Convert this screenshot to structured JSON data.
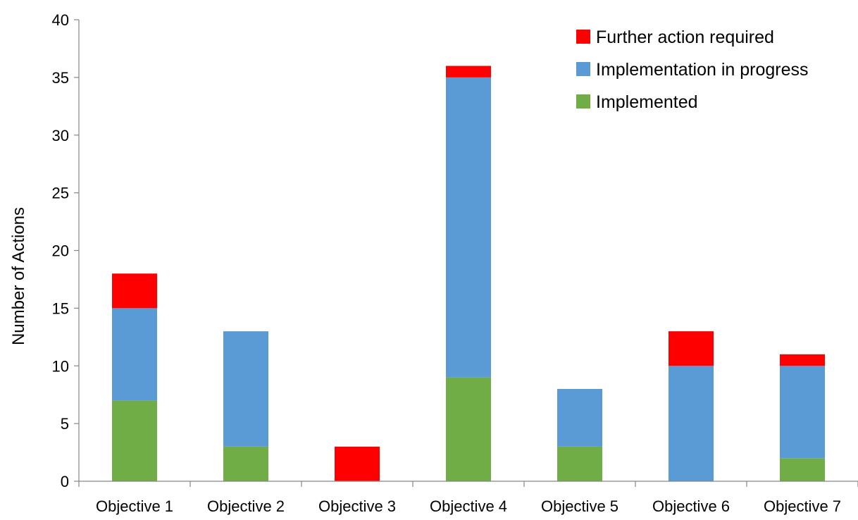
{
  "chart_data": {
    "type": "bar",
    "stacked": true,
    "title": "",
    "xlabel": "",
    "ylabel": "Number of Actions",
    "ylim": [
      0,
      40
    ],
    "yticks": [
      0,
      5,
      10,
      15,
      20,
      25,
      30,
      35,
      40
    ],
    "grid": false,
    "legend_position": "top-right",
    "categories": [
      "Objective 1",
      "Objective 2",
      "Objective 3",
      "Objective 4",
      "Objective 5",
      "Objective 6",
      "Objective 7"
    ],
    "series": [
      {
        "name": "Implemented",
        "color": "#70AD47",
        "values": [
          7,
          3,
          0,
          9,
          3,
          0,
          2
        ]
      },
      {
        "name": "Implementation in progress",
        "color": "#5B9BD5",
        "values": [
          8,
          10,
          0,
          26,
          5,
          10,
          8
        ]
      },
      {
        "name": "Further action required",
        "color": "#FF0000",
        "values": [
          3,
          0,
          3,
          1,
          0,
          3,
          1
        ]
      }
    ],
    "legend_order": [
      "Further action required",
      "Implementation in progress",
      "Implemented"
    ]
  }
}
